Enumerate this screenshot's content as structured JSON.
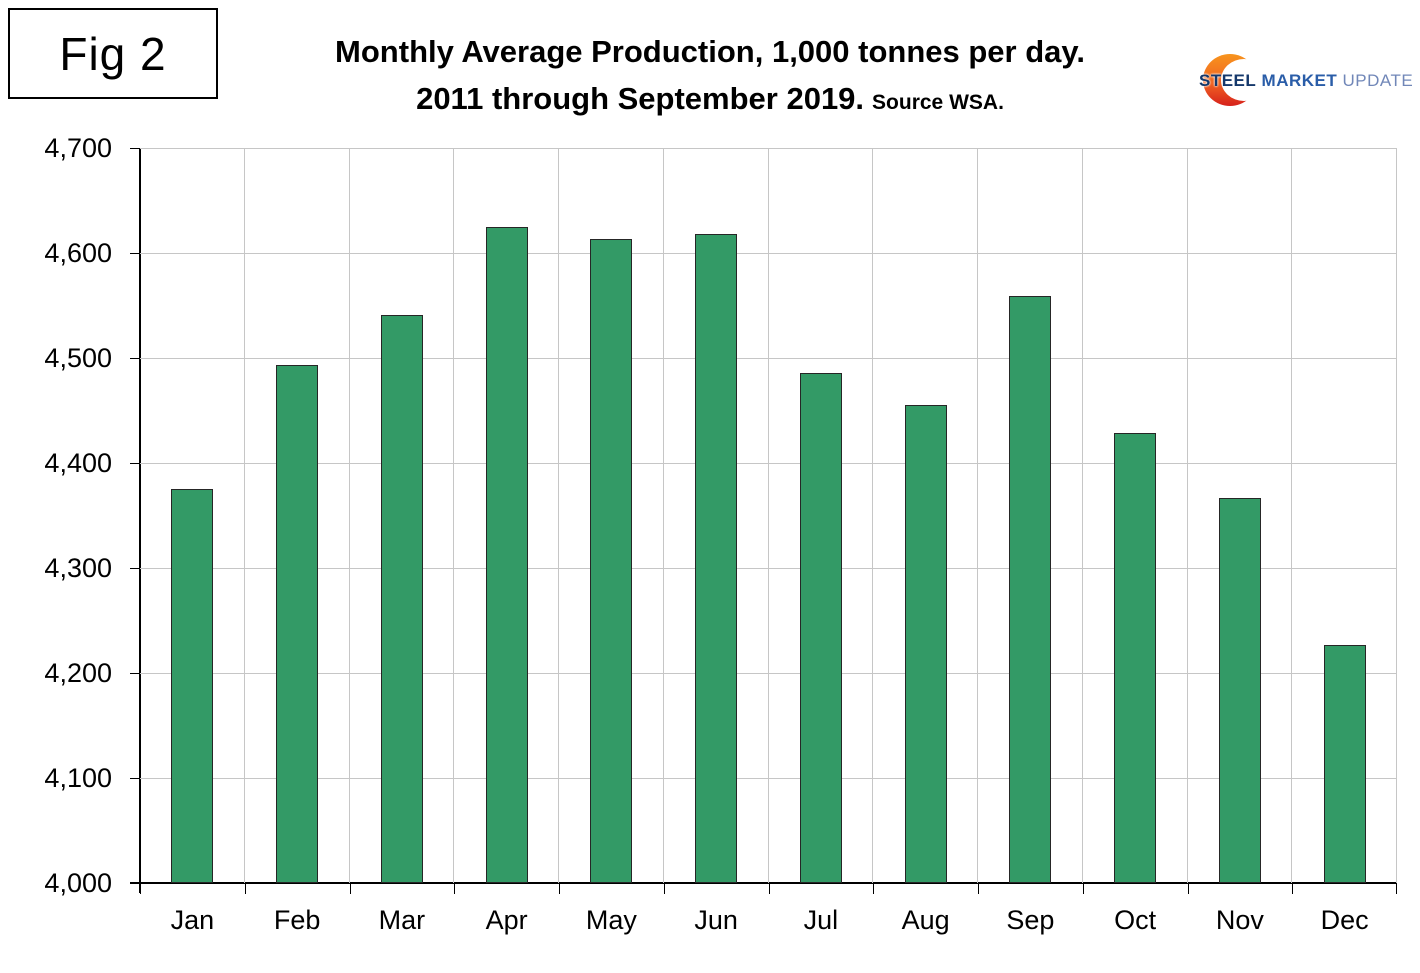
{
  "figure": {
    "label": "Fig 2"
  },
  "title": {
    "line1": "Monthly Average Production, 1,000 tonnes per day.",
    "line2": "2011 through September 2019.",
    "source": "Source WSA."
  },
  "logo": {
    "word1": "STEEL",
    "word2": "MARKET",
    "word3": "UPDATE"
  },
  "chart_data": {
    "type": "bar",
    "title": "Monthly Average Production, 1,000 tonnes per day. 2011 through September 2019.",
    "categories": [
      "Jan",
      "Feb",
      "Mar",
      "Apr",
      "May",
      "Jun",
      "Jul",
      "Aug",
      "Sep",
      "Oct",
      "Nov",
      "Dec"
    ],
    "values": [
      4375,
      4493,
      4541,
      4625,
      4613,
      4618,
      4486,
      4455,
      4559,
      4429,
      4367,
      4227
    ],
    "xlabel": "",
    "ylabel": "",
    "ylim": [
      4000,
      4700
    ],
    "ytick_step": 100,
    "ytick_labels": [
      "4,000",
      "4,100",
      "4,200",
      "4,300",
      "4,400",
      "4,500",
      "4,600",
      "4,700"
    ],
    "grid": true,
    "legend": "none",
    "bar_color": "#339a66",
    "bar_border_color": "#262626",
    "grid_color": "#c6c6c6",
    "axis_color": "#000000"
  }
}
